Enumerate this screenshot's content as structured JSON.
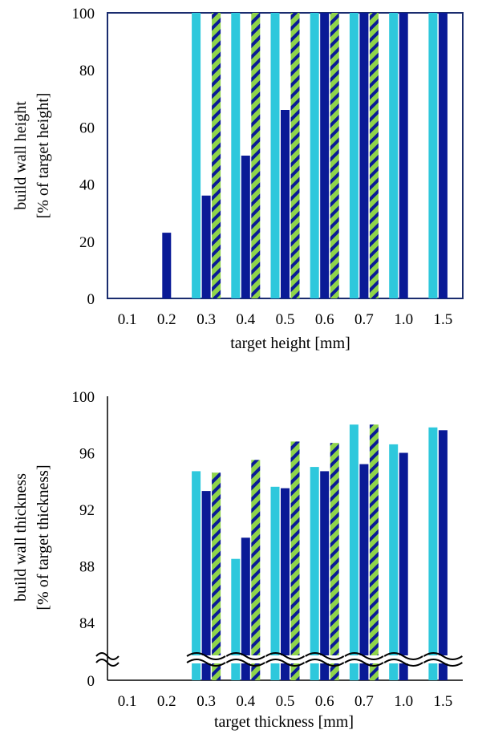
{
  "colors": {
    "cyan": "#2ec8dc",
    "navy": "#0a1a96",
    "hatch_green": "#8fd44a",
    "hatch_navy": "#0a1a96",
    "axis": "#1a2c6e"
  },
  "chart_data": [
    {
      "type": "bar",
      "categories": [
        "0.1",
        "0.2",
        "0.3",
        "0.4",
        "0.5",
        "0.6",
        "0.7",
        "1.0",
        "1.5"
      ],
      "series": [
        {
          "style": "cyan",
          "values": [
            null,
            null,
            100,
            100,
            100,
            100,
            100,
            100,
            100
          ]
        },
        {
          "style": "navy",
          "values": [
            null,
            23,
            36,
            50,
            66,
            100,
            100,
            100,
            100
          ]
        },
        {
          "style": "hatched",
          "values": [
            null,
            null,
            100,
            100,
            100,
            100,
            100,
            null,
            null
          ]
        }
      ],
      "xlabel": "target height [mm]",
      "ylabel_line1": "build wall height",
      "ylabel_line2": "[% of target height]",
      "ylim": [
        0,
        100
      ],
      "yticks": [
        "0",
        "20",
        "40",
        "60",
        "80",
        "100"
      ],
      "grid": false,
      "axis_break": false
    },
    {
      "type": "bar",
      "categories": [
        "0.1",
        "0.2",
        "0.3",
        "0.4",
        "0.5",
        "0.6",
        "0.7",
        "1.0",
        "1.5"
      ],
      "series": [
        {
          "style": "cyan",
          "values": [
            null,
            null,
            94.7,
            88.5,
            93.6,
            95.0,
            98.0,
            96.6,
            97.8
          ]
        },
        {
          "style": "navy",
          "values": [
            null,
            null,
            93.3,
            90.0,
            93.5,
            94.7,
            95.2,
            96.0,
            97.6
          ]
        },
        {
          "style": "hatched",
          "values": [
            null,
            null,
            94.6,
            95.5,
            96.8,
            96.7,
            98.0,
            null,
            null
          ]
        }
      ],
      "xlabel": "target thickness [mm]",
      "ylabel_line1": "build wall thickness",
      "ylabel_line2": "[% of target thickness]",
      "ylim": [
        80,
        100
      ],
      "yticks": [
        "0",
        "84",
        "88",
        "92",
        "96",
        "100"
      ],
      "grid": false,
      "axis_break": true
    }
  ]
}
